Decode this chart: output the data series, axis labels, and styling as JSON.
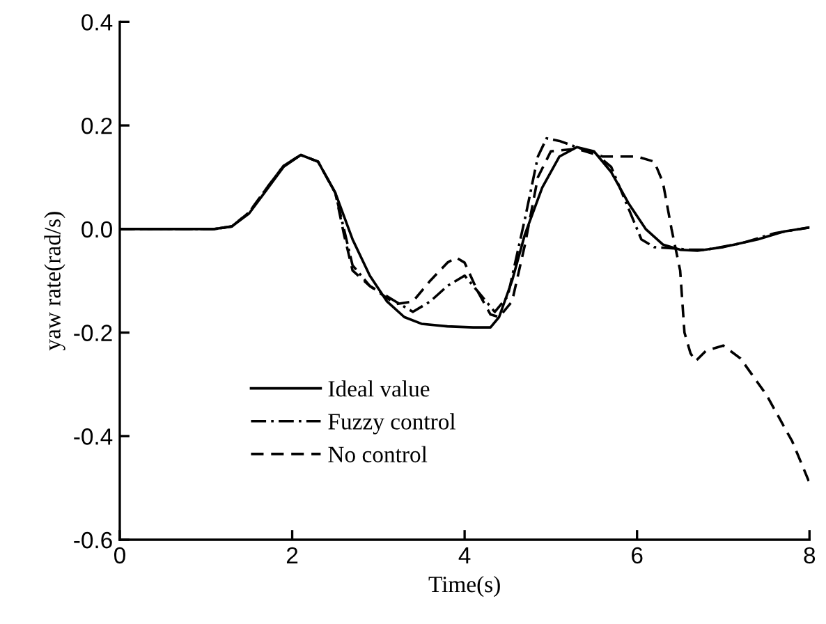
{
  "chart_data": {
    "type": "line",
    "xlabel": "Time(s)",
    "ylabel": "yaw rate(rad/s)",
    "xlim": [
      0,
      8
    ],
    "ylim": [
      -0.6,
      0.4
    ],
    "xticks": [
      0,
      2,
      4,
      6,
      8
    ],
    "yticks": [
      {
        "value": -0.6,
        "label": "-0.6"
      },
      {
        "value": -0.4,
        "label": "-0.4"
      },
      {
        "value": -0.2,
        "label": "-0.2"
      },
      {
        "value": 0,
        "label": "0.0"
      },
      {
        "value": 0.2,
        "label": "0.2"
      },
      {
        "value": 0.4,
        "label": "0.4"
      }
    ],
    "grid": false,
    "legend": "bottom left",
    "marker": "none",
    "series": [
      {
        "name": "Ideal value",
        "color": "#000000",
        "line_style": "solid",
        "x": [
          0,
          1.1,
          1.3,
          1.5,
          1.7,
          1.9,
          2.1,
          2.3,
          2.5,
          2.7,
          2.9,
          3.1,
          3.3,
          3.5,
          3.8,
          4.1,
          4.3,
          4.4,
          4.55,
          4.7,
          4.9,
          5.1,
          5.3,
          5.5,
          5.7,
          5.9,
          6.1,
          6.3,
          6.5,
          6.7,
          7.0,
          7.4,
          7.7,
          8.0
        ],
        "values": [
          0,
          0,
          0.005,
          0.03,
          0.075,
          0.12,
          0.143,
          0.13,
          0.07,
          -0.02,
          -0.09,
          -0.14,
          -0.17,
          -0.183,
          -0.188,
          -0.19,
          -0.19,
          -0.17,
          -0.1,
          -0.01,
          0.08,
          0.14,
          0.158,
          0.15,
          0.11,
          0.05,
          0.0,
          -0.03,
          -0.04,
          -0.042,
          -0.035,
          -0.02,
          -0.005,
          0.003
        ]
      },
      {
        "name": "Fuzzy control",
        "color": "#000000",
        "line_style": "dashdot",
        "x": [
          0,
          1.1,
          1.3,
          1.5,
          1.7,
          1.9,
          2.1,
          2.3,
          2.5,
          2.6,
          2.7,
          2.9,
          3.2,
          3.4,
          3.6,
          3.8,
          4.0,
          4.2,
          4.35,
          4.5,
          4.7,
          4.85,
          4.95,
          5.1,
          5.3,
          5.5,
          5.7,
          5.9,
          6.05,
          6.2,
          6.4,
          6.6,
          6.8,
          7.2,
          7.6,
          8.0
        ],
        "values": [
          0,
          0,
          0.005,
          0.032,
          0.078,
          0.122,
          0.143,
          0.13,
          0.07,
          0.0,
          -0.07,
          -0.11,
          -0.14,
          -0.16,
          -0.14,
          -0.11,
          -0.09,
          -0.13,
          -0.16,
          -0.13,
          0.02,
          0.14,
          0.175,
          0.17,
          0.158,
          0.148,
          0.12,
          0.04,
          -0.02,
          -0.035,
          -0.037,
          -0.04,
          -0.04,
          -0.028,
          -0.008,
          0.003
        ]
      },
      {
        "name": "No control",
        "color": "#000000",
        "line_style": "dashed",
        "x": [
          0,
          1.1,
          1.3,
          1.5,
          1.7,
          1.9,
          2.1,
          2.3,
          2.5,
          2.6,
          2.7,
          2.9,
          3.2,
          3.4,
          3.6,
          3.8,
          3.9,
          4.0,
          4.15,
          4.3,
          4.4,
          4.55,
          4.7,
          4.85,
          5.0,
          5.3,
          5.6,
          6.0,
          6.2,
          6.3,
          6.4,
          6.5,
          6.55,
          6.62,
          6.68,
          6.8,
          7.0,
          7.2,
          7.5,
          7.8,
          8.0
        ],
        "values": [
          0,
          0,
          0.005,
          0.032,
          0.078,
          0.122,
          0.143,
          0.13,
          0.07,
          -0.01,
          -0.08,
          -0.11,
          -0.145,
          -0.14,
          -0.1,
          -0.065,
          -0.055,
          -0.065,
          -0.12,
          -0.165,
          -0.17,
          -0.14,
          -0.03,
          0.1,
          0.15,
          0.155,
          0.14,
          0.14,
          0.13,
          0.09,
          0.0,
          -0.08,
          -0.2,
          -0.24,
          -0.255,
          -0.235,
          -0.225,
          -0.25,
          -0.32,
          -0.41,
          -0.49
        ]
      }
    ]
  }
}
